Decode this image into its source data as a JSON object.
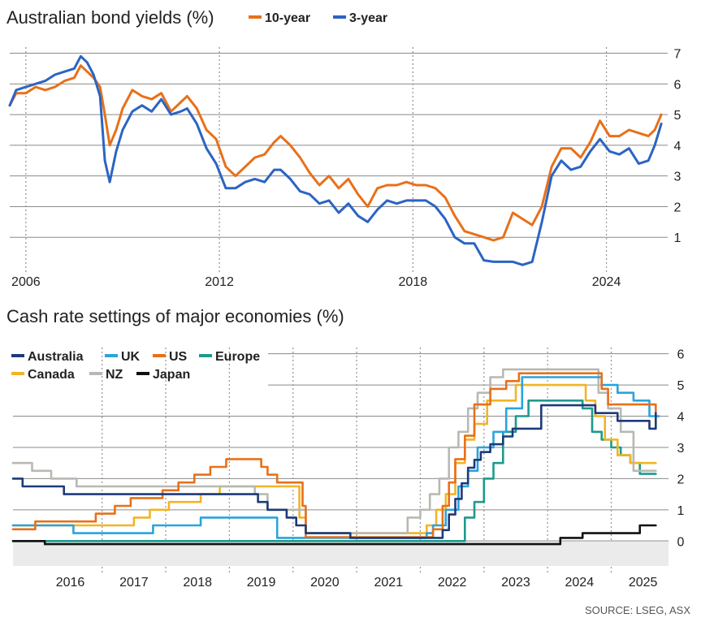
{
  "chart_data": [
    {
      "type": "line",
      "title": "Australian bond yields (%)",
      "xlabel": "",
      "ylabel": "",
      "xlim": [
        2005.5,
        2025.9
      ],
      "ylim": [
        0,
        7.2
      ],
      "y_ticks": [
        "1",
        "2",
        "3",
        "4",
        "5",
        "6",
        "7"
      ],
      "x_ticks": [
        {
          "value": 2006,
          "label": "2006"
        },
        {
          "value": 2012,
          "label": "2012"
        },
        {
          "value": 2018,
          "label": "2018"
        },
        {
          "value": 2024,
          "label": "2024"
        }
      ],
      "legend_position": "top",
      "series": [
        {
          "name": "10-year",
          "color": "#e8701a",
          "x": [
            2005.5,
            2005.7,
            2006.0,
            2006.3,
            2006.6,
            2006.9,
            2007.2,
            2007.5,
            2007.7,
            2007.9,
            2008.1,
            2008.3,
            2008.45,
            2008.6,
            2008.8,
            2009.0,
            2009.3,
            2009.6,
            2009.9,
            2010.2,
            2010.5,
            2010.8,
            2011.0,
            2011.3,
            2011.6,
            2011.9,
            2012.2,
            2012.5,
            2012.8,
            2013.1,
            2013.4,
            2013.7,
            2013.9,
            2014.2,
            2014.5,
            2014.8,
            2015.1,
            2015.4,
            2015.7,
            2016.0,
            2016.3,
            2016.6,
            2016.9,
            2017.2,
            2017.5,
            2017.8,
            2018.1,
            2018.4,
            2018.7,
            2019.0,
            2019.3,
            2019.6,
            2019.9,
            2020.2,
            2020.5,
            2020.8,
            2021.1,
            2021.4,
            2021.7,
            2022.0,
            2022.3,
            2022.6,
            2022.9,
            2023.2,
            2023.5,
            2023.8,
            2024.1,
            2024.4,
            2024.7,
            2025.0,
            2025.3,
            2025.5,
            2025.7
          ],
          "y": [
            5.3,
            5.7,
            5.7,
            5.9,
            5.8,
            5.9,
            6.1,
            6.2,
            6.6,
            6.4,
            6.2,
            5.9,
            5.0,
            4.0,
            4.5,
            5.2,
            5.8,
            5.6,
            5.5,
            5.7,
            5.1,
            5.4,
            5.6,
            5.2,
            4.5,
            4.2,
            3.3,
            3.0,
            3.3,
            3.6,
            3.7,
            4.1,
            4.3,
            4.0,
            3.6,
            3.1,
            2.7,
            3.0,
            2.6,
            2.9,
            2.4,
            2.0,
            2.6,
            2.7,
            2.7,
            2.8,
            2.7,
            2.7,
            2.6,
            2.3,
            1.7,
            1.2,
            1.1,
            1.0,
            0.9,
            1.0,
            1.8,
            1.6,
            1.4,
            2.0,
            3.3,
            3.9,
            3.9,
            3.6,
            4.1,
            4.8,
            4.3,
            4.3,
            4.5,
            4.4,
            4.3,
            4.5,
            5.0
          ]
        },
        {
          "name": "3-year",
          "color": "#2b64c4",
          "x": [
            2005.5,
            2005.7,
            2006.0,
            2006.3,
            2006.6,
            2006.9,
            2007.2,
            2007.5,
            2007.7,
            2007.9,
            2008.1,
            2008.3,
            2008.45,
            2008.6,
            2008.8,
            2009.0,
            2009.3,
            2009.6,
            2009.9,
            2010.2,
            2010.5,
            2010.8,
            2011.0,
            2011.3,
            2011.6,
            2011.9,
            2012.2,
            2012.5,
            2012.8,
            2013.1,
            2013.4,
            2013.7,
            2013.9,
            2014.2,
            2014.5,
            2014.8,
            2015.1,
            2015.4,
            2015.7,
            2016.0,
            2016.3,
            2016.6,
            2016.9,
            2017.2,
            2017.5,
            2017.8,
            2018.1,
            2018.4,
            2018.7,
            2019.0,
            2019.3,
            2019.6,
            2019.9,
            2020.2,
            2020.5,
            2020.8,
            2021.1,
            2021.4,
            2021.7,
            2022.0,
            2022.3,
            2022.6,
            2022.9,
            2023.2,
            2023.5,
            2023.8,
            2024.1,
            2024.4,
            2024.7,
            2025.0,
            2025.3,
            2025.5,
            2025.7
          ],
          "y": [
            5.3,
            5.8,
            5.9,
            6.0,
            6.1,
            6.3,
            6.4,
            6.5,
            6.9,
            6.7,
            6.3,
            5.6,
            3.5,
            2.8,
            3.8,
            4.5,
            5.1,
            5.3,
            5.1,
            5.5,
            5.0,
            5.1,
            5.2,
            4.7,
            3.9,
            3.4,
            2.6,
            2.6,
            2.8,
            2.9,
            2.8,
            3.2,
            3.2,
            2.9,
            2.5,
            2.4,
            2.1,
            2.2,
            1.8,
            2.1,
            1.7,
            1.5,
            1.9,
            2.2,
            2.1,
            2.2,
            2.2,
            2.2,
            2.0,
            1.6,
            1.0,
            0.8,
            0.8,
            0.25,
            0.2,
            0.2,
            0.2,
            0.1,
            0.2,
            1.5,
            3.0,
            3.5,
            3.2,
            3.3,
            3.8,
            4.2,
            3.8,
            3.7,
            3.9,
            3.4,
            3.5,
            4.0,
            4.7
          ]
        }
      ]
    },
    {
      "type": "line",
      "title": "Cash rate settings of major economies (%)",
      "xlabel": "",
      "ylabel": "",
      "xlim": [
        2015.6,
        2025.9
      ],
      "ylim": [
        -0.8,
        6.2
      ],
      "y_ticks": [
        "0",
        "1",
        "2",
        "3",
        "4",
        "5",
        "6"
      ],
      "x_ticks": [
        "2016",
        "2017",
        "2018",
        "2019",
        "2020",
        "2021",
        "2022",
        "2023",
        "2024",
        "2025"
      ],
      "legend_position": "top-left",
      "series": [
        {
          "name": "Australia",
          "color": "#1d3a7a",
          "x": [
            2015.6,
            2015.75,
            2016.0,
            2016.4,
            2016.65,
            2018.5,
            2019.0,
            2019.45,
            2019.6,
            2019.9,
            2020.05,
            2020.2,
            2020.9,
            2022.0,
            2022.35,
            2022.45,
            2022.55,
            2022.65,
            2022.75,
            2022.85,
            2022.95,
            2023.1,
            2023.3,
            2023.45,
            2023.9,
            2024.5,
            2024.75,
            2025.1,
            2025.45,
            2025.6,
            2025.7
          ],
          "y": [
            2.0,
            1.75,
            1.75,
            1.5,
            1.5,
            1.5,
            1.5,
            1.25,
            1.0,
            0.75,
            0.5,
            0.25,
            0.1,
            0.1,
            0.35,
            0.85,
            1.35,
            1.85,
            2.35,
            2.6,
            2.85,
            3.1,
            3.35,
            3.6,
            4.35,
            4.35,
            4.1,
            3.85,
            3.85,
            3.6,
            4.1
          ]
        },
        {
          "name": "UK",
          "color": "#2aa3dd",
          "x": [
            2015.6,
            2016.55,
            2017.8,
            2018.55,
            2019.7,
            2019.75,
            2021.9,
            2022.1,
            2022.2,
            2022.4,
            2022.6,
            2022.75,
            2022.9,
            2023.15,
            2023.35,
            2023.6,
            2024.6,
            2024.85,
            2025.1,
            2025.35,
            2025.6,
            2025.75
          ],
          "y": [
            0.5,
            0.25,
            0.5,
            0.75,
            0.75,
            0.1,
            0.1,
            0.25,
            0.5,
            1.0,
            1.75,
            2.25,
            3.0,
            3.5,
            4.25,
            5.25,
            5.25,
            5.0,
            4.75,
            4.5,
            4.0,
            4.0
          ]
        },
        {
          "name": "US",
          "color": "#e8701a",
          "x": [
            2015.6,
            2015.95,
            2016.9,
            2017.2,
            2017.45,
            2017.95,
            2018.2,
            2018.45,
            2018.7,
            2018.95,
            2019.5,
            2019.6,
            2019.75,
            2020.15,
            2020.2,
            2022.2,
            2022.35,
            2022.45,
            2022.55,
            2022.7,
            2022.85,
            2023.1,
            2023.35,
            2023.55,
            2024.7,
            2024.85,
            2024.95,
            2025.7
          ],
          "y": [
            0.375,
            0.625,
            0.875,
            1.125,
            1.375,
            1.625,
            1.875,
            2.125,
            2.375,
            2.625,
            2.375,
            2.125,
            1.875,
            1.125,
            0.125,
            0.375,
            1.125,
            1.875,
            2.625,
            3.375,
            4.375,
            4.875,
            5.125,
            5.375,
            5.375,
            4.875,
            4.375,
            4.125
          ]
        },
        {
          "name": "Europe",
          "color": "#1e9a8c",
          "x": [
            2015.6,
            2022.5,
            2022.7,
            2022.85,
            2023.0,
            2023.15,
            2023.3,
            2023.5,
            2023.7,
            2024.4,
            2024.55,
            2024.7,
            2024.85,
            2025.0,
            2025.15,
            2025.3,
            2025.45,
            2025.7
          ],
          "y": [
            0.0,
            0.0,
            0.75,
            1.25,
            2.0,
            2.5,
            3.5,
            4.0,
            4.5,
            4.5,
            4.25,
            3.5,
            3.25,
            3.0,
            2.75,
            2.5,
            2.15,
            2.15
          ]
        },
        {
          "name": "Canada",
          "color": "#f2b425",
          "x": [
            2015.6,
            2017.5,
            2017.75,
            2018.05,
            2018.55,
            2018.85,
            2019.7,
            2020.1,
            2020.2,
            2021.9,
            2022.1,
            2022.25,
            2022.4,
            2022.55,
            2022.7,
            2022.85,
            2023.05,
            2023.5,
            2024.4,
            2024.6,
            2024.75,
            2024.9,
            2025.1,
            2025.3,
            2025.7
          ],
          "y": [
            0.5,
            0.75,
            1.0,
            1.25,
            1.5,
            1.75,
            1.75,
            0.75,
            0.25,
            0.25,
            0.5,
            1.0,
            1.5,
            2.5,
            3.25,
            3.75,
            4.5,
            5.0,
            5.0,
            4.5,
            4.0,
            3.25,
            2.75,
            2.5,
            2.5
          ]
        },
        {
          "name": "NZ",
          "color": "#b7b9b2",
          "x": [
            2015.6,
            2015.9,
            2016.2,
            2016.6,
            2019.4,
            2019.6,
            2020.15,
            2020.2,
            2021.6,
            2021.8,
            2022.0,
            2022.15,
            2022.3,
            2022.45,
            2022.6,
            2022.75,
            2022.9,
            2023.1,
            2023.3,
            2024.6,
            2024.8,
            2024.95,
            2025.15,
            2025.35,
            2025.7
          ],
          "y": [
            2.5,
            2.25,
            2.0,
            1.75,
            1.5,
            1.0,
            1.0,
            0.25,
            0.25,
            0.75,
            1.0,
            1.5,
            2.0,
            3.0,
            3.5,
            4.25,
            4.75,
            5.25,
            5.5,
            5.5,
            4.75,
            4.25,
            3.5,
            2.25,
            2.25
          ]
        },
        {
          "name": "Japan",
          "color": "#111111",
          "x": [
            2015.6,
            2016.1,
            2023.65,
            2024.2,
            2024.55,
            2024.55,
            2025.45,
            2025.7
          ],
          "y": [
            0.0,
            -0.1,
            -0.1,
            0.1,
            0.25,
            0.25,
            0.5,
            0.5
          ]
        }
      ]
    }
  ],
  "source": "SOURCE: LSEG, ASX"
}
